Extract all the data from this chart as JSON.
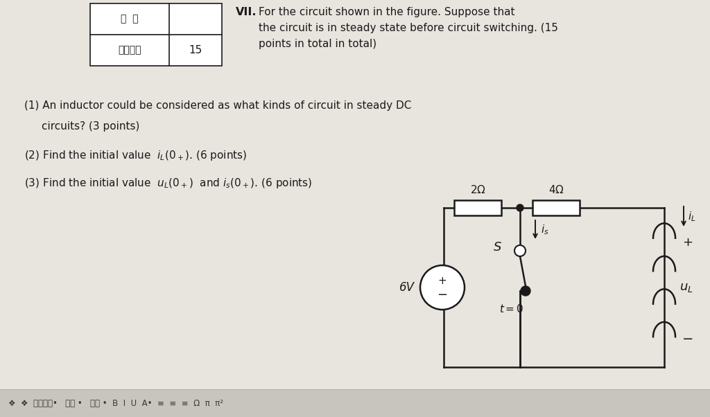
{
  "bg_color": "#e8e4de",
  "page_color": "#f0ece6",
  "lc": "#1a1a1a",
  "lw": 1.8,
  "table_label1": "本题分数",
  "table_val1": "15",
  "table_label2": "得  分",
  "vii_bold": "VII.",
  "vii_rest": " For the circuit shown in the figure. Suppose that\nthe circuit is in steady state before circuit switching. (15\npoints in total in total)",
  "q1a": "(1) An inductor could be considered as what kinds of circuit in steady DC",
  "q1b": "    circuits? (3 points)",
  "q2": "(2) Find the initial value  $i_L(0_+)$. (6 points)",
  "q3": "(3) Find the initial value  $u_L(0_+)$  and $i_s(0_+)$. (6 points)",
  "res2_label": "2$\\Omega$",
  "res4_label": "4$\\Omega$",
  "vs_val": "6V",
  "toolbar_bg": "#d8d4ce",
  "toolbar_text": "❖  ❖  段落格式•   字体 •   字号 •  B  I  U  A̲ •  ≡  ≡  ≡  Ω  π  π¹°"
}
